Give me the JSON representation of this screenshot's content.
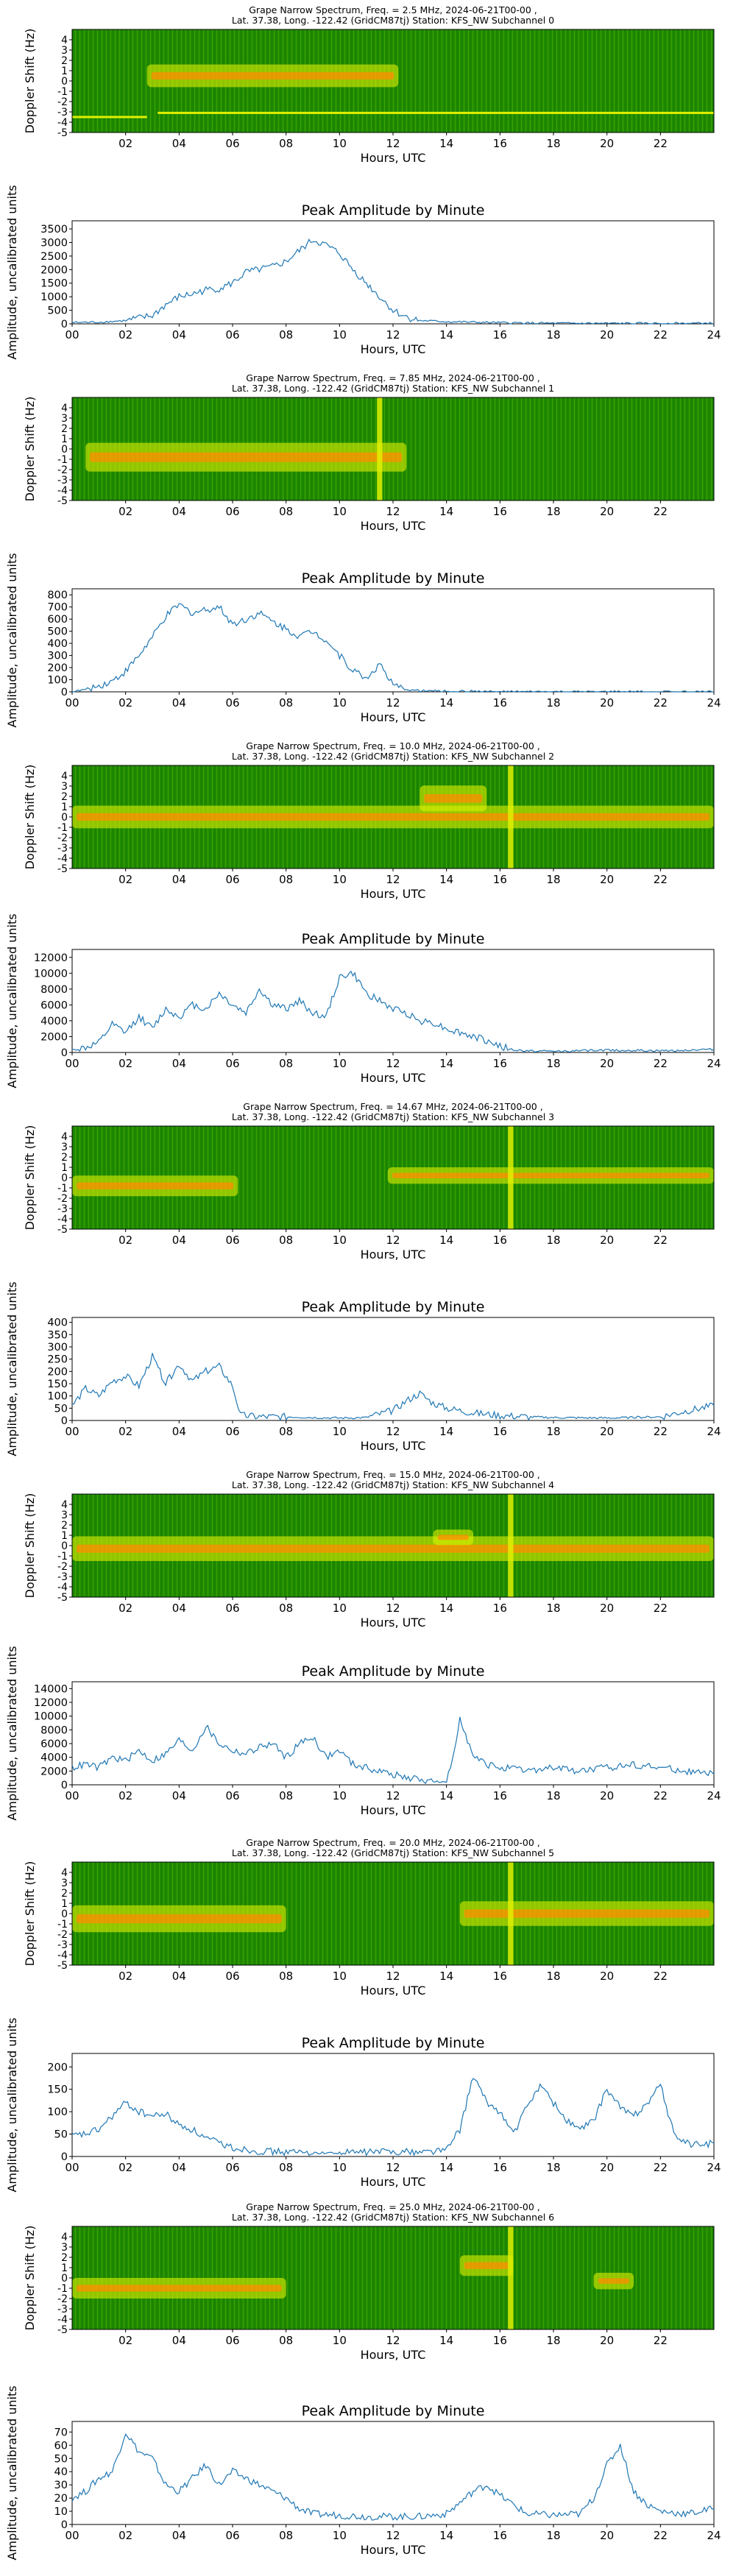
{
  "figure": {
    "x_ticks": [
      "00",
      "02",
      "04",
      "06",
      "08",
      "10",
      "12",
      "14",
      "16",
      "18",
      "20",
      "22",
      "24"
    ],
    "spec_x_ticks": [
      "02",
      "04",
      "06",
      "08",
      "10",
      "12",
      "14",
      "16",
      "18",
      "20",
      "22"
    ]
  },
  "chart_data": [
    {
      "type": "heatmap",
      "channel": 0,
      "title": "Grape Narrow Spectrum, Freq. = 2.5 MHz, 2024-06-21T00-00 ,",
      "subtitle": "Lat.  37.38, Long. -122.42 (GridCM87tj) Station: KFS_NW Subchannel 0",
      "xlabel": "Hours, UTC",
      "ylabel": "Doppler Shift (Hz)",
      "xlim": [
        0,
        24
      ],
      "ylim": [
        -5,
        5
      ],
      "y_ticks": [
        "4",
        "3",
        "2",
        "1",
        "0",
        "-1",
        "-2",
        "-3",
        "-4",
        "-5"
      ],
      "colors": {
        "background": "#1e8a00",
        "signal": "#e0f000",
        "peak": "#ff8c00"
      },
      "features": [
        {
          "kind": "band",
          "start": 2.8,
          "end": 12.2,
          "center": 0.5,
          "width": 2.2
        },
        {
          "kind": "line",
          "start": 0,
          "end": 2.8,
          "center": -3.5
        },
        {
          "kind": "line",
          "start": 3.2,
          "end": 24,
          "center": -3.1
        }
      ]
    },
    {
      "type": "line",
      "channel": 0,
      "title": "Peak Amplitude by Minute",
      "xlabel": "Hours, UTC",
      "ylabel": "Amplitude, uncalibrated units",
      "xlim": [
        0,
        24
      ],
      "ylim": [
        0,
        3800
      ],
      "y_ticks": [
        0,
        500,
        1000,
        1500,
        2000,
        2500,
        3000,
        3500
      ],
      "x": [
        0,
        1,
        2,
        3,
        3.5,
        4,
        4.5,
        5,
        5.5,
        6,
        6.5,
        7,
        7.5,
        8,
        8.5,
        9,
        9.5,
        10,
        10.5,
        11,
        11.5,
        12,
        12.5,
        13,
        14,
        16,
        18,
        20,
        22,
        24
      ],
      "values": [
        50,
        60,
        120,
        300,
        700,
        1000,
        1100,
        1250,
        1300,
        1500,
        1900,
        2000,
        2100,
        2300,
        2700,
        3100,
        2900,
        2600,
        2000,
        1500,
        1000,
        500,
        250,
        120,
        80,
        40,
        20,
        15,
        15,
        20
      ]
    },
    {
      "type": "heatmap",
      "channel": 1,
      "title": "Grape Narrow Spectrum, Freq. = 7.85 MHz, 2024-06-21T00-00 ,",
      "subtitle": "Lat.  37.38, Long. -122.42 (GridCM87tj) Station: KFS_NW Subchannel 1",
      "xlabel": "Hours, UTC",
      "ylabel": "Doppler Shift (Hz)",
      "xlim": [
        0,
        24
      ],
      "ylim": [
        -5,
        5
      ],
      "y_ticks": [
        "4",
        "3",
        "2",
        "1",
        "0",
        "-1",
        "-2",
        "-3",
        "-4",
        "-5"
      ],
      "colors": {
        "background": "#1e8a00",
        "signal": "#e0f000",
        "peak": "#ff8c00"
      },
      "features": [
        {
          "kind": "band",
          "start": 0.5,
          "end": 12.5,
          "center": -0.8,
          "width": 2.8
        },
        {
          "kind": "vline",
          "start": 11.4,
          "end": 11.6,
          "center": 0
        }
      ]
    },
    {
      "type": "line",
      "channel": 1,
      "title": "Peak Amplitude by Minute",
      "xlabel": "Hours, UTC",
      "ylabel": "Amplitude, uncalibrated units",
      "xlim": [
        0,
        24
      ],
      "ylim": [
        0,
        850
      ],
      "y_ticks": [
        0,
        100,
        200,
        300,
        400,
        500,
        600,
        700,
        800
      ],
      "x": [
        0,
        0.5,
        1,
        1.5,
        2,
        2.5,
        3,
        3.5,
        4,
        4.5,
        5,
        5.5,
        6,
        6.5,
        7,
        7.5,
        8,
        8.5,
        9,
        9.5,
        10,
        10.5,
        11,
        11.5,
        12,
        12.5,
        13,
        14,
        15,
        16,
        18,
        20,
        22,
        24
      ],
      "values": [
        0,
        20,
        50,
        90,
        170,
        300,
        450,
        620,
        720,
        650,
        680,
        700,
        560,
        600,
        650,
        580,
        520,
        460,
        500,
        430,
        300,
        180,
        110,
        230,
        50,
        20,
        10,
        5,
        5,
        0,
        0,
        0,
        0,
        0
      ]
    },
    {
      "type": "heatmap",
      "channel": 2,
      "title": "Grape Narrow Spectrum, Freq. = 10.0 MHz, 2024-06-21T00-00 ,",
      "subtitle": "Lat.  37.38, Long. -122.42 (GridCM87tj) Station: KFS_NW Subchannel 2",
      "xlabel": "Hours, UTC",
      "ylabel": "Doppler Shift (Hz)",
      "xlim": [
        0,
        24
      ],
      "ylim": [
        -5,
        5
      ],
      "y_ticks": [
        "4",
        "3",
        "2",
        "1",
        "0",
        "-1",
        "-2",
        "-3",
        "-4",
        "-5"
      ],
      "colors": {
        "background": "#1e8a00",
        "signal": "#e0f000",
        "peak": "#ff8c00"
      },
      "features": [
        {
          "kind": "band",
          "start": 0,
          "end": 24,
          "center": 0,
          "width": 2.2
        },
        {
          "kind": "band",
          "start": 13,
          "end": 15.5,
          "center": 1.8,
          "width": 2.5
        },
        {
          "kind": "vline",
          "start": 16.3,
          "end": 16.5,
          "center": 0
        }
      ]
    },
    {
      "type": "line",
      "channel": 2,
      "title": "Peak Amplitude by Minute",
      "xlabel": "Hours, UTC",
      "ylabel": "Amplitude, uncalibrated units",
      "xlim": [
        0,
        24
      ],
      "ylim": [
        0,
        13000
      ],
      "y_ticks": [
        0,
        2000,
        4000,
        6000,
        8000,
        10000,
        12000
      ],
      "x": [
        0,
        0.5,
        1,
        1.5,
        2,
        2.5,
        3,
        3.5,
        4,
        4.5,
        5,
        5.5,
        6,
        6.5,
        7,
        7.5,
        8,
        8.5,
        9,
        9.5,
        10,
        10.5,
        11,
        11.5,
        12,
        12.5,
        13,
        13.5,
        14,
        14.5,
        15,
        15.5,
        16,
        16.5,
        17,
        18,
        20,
        22,
        24
      ],
      "values": [
        300,
        600,
        1200,
        3500,
        2500,
        4500,
        3000,
        5500,
        4500,
        6000,
        5500,
        7500,
        6000,
        5000,
        8000,
        6000,
        5500,
        6500,
        5000,
        4500,
        9500,
        10000,
        7500,
        6500,
        5500,
        5000,
        4000,
        3800,
        3000,
        2500,
        2000,
        1500,
        800,
        300,
        200,
        150,
        300,
        200,
        400
      ]
    },
    {
      "type": "heatmap",
      "channel": 3,
      "title": "Grape Narrow Spectrum, Freq. = 14.67 MHz, 2024-06-21T00-00 ,",
      "subtitle": "Lat.  37.38, Long. -122.42 (GridCM87tj) Station: KFS_NW Subchannel 3",
      "xlabel": "Hours, UTC",
      "ylabel": "Doppler Shift (Hz)",
      "xlim": [
        0,
        24
      ],
      "ylim": [
        -5,
        5
      ],
      "y_ticks": [
        "4",
        "3",
        "2",
        "1",
        "0",
        "-1",
        "-2",
        "-3",
        "-4",
        "-5"
      ],
      "colors": {
        "background": "#1e8a00",
        "signal": "#e0f000",
        "peak": "#ff8c00"
      },
      "features": [
        {
          "kind": "band",
          "start": 0,
          "end": 6.2,
          "center": -0.8,
          "width": 2.0
        },
        {
          "kind": "band",
          "start": 11.8,
          "end": 24,
          "center": 0.2,
          "width": 1.6
        },
        {
          "kind": "vline",
          "start": 16.3,
          "end": 16.5,
          "center": 0
        }
      ]
    },
    {
      "type": "line",
      "channel": 3,
      "title": "Peak Amplitude by Minute",
      "xlabel": "Hours, UTC",
      "ylabel": "Amplitude, uncalibrated units",
      "xlim": [
        0,
        24
      ],
      "ylim": [
        0,
        420
      ],
      "y_ticks": [
        0,
        50,
        100,
        150,
        200,
        250,
        300,
        350,
        400
      ],
      "x": [
        0,
        0.5,
        1,
        1.5,
        2,
        2.5,
        3,
        3.5,
        4,
        4.5,
        5,
        5.5,
        6,
        6.3,
        7,
        8,
        9,
        10,
        11,
        12,
        12.5,
        13,
        13.5,
        14,
        15,
        16,
        17,
        18,
        20,
        22,
        23,
        24
      ],
      "values": [
        60,
        130,
        100,
        160,
        180,
        140,
        260,
        150,
        230,
        160,
        200,
        220,
        140,
        20,
        15,
        15,
        12,
        10,
        12,
        40,
        80,
        110,
        70,
        50,
        30,
        20,
        15,
        12,
        10,
        15,
        40,
        60
      ]
    },
    {
      "type": "heatmap",
      "channel": 4,
      "title": "Grape Narrow Spectrum, Freq. = 15.0 MHz, 2024-06-21T00-00 ,",
      "subtitle": "Lat.  37.38, Long. -122.42 (GridCM87tj) Station: KFS_NW Subchannel 4",
      "xlabel": "Hours, UTC",
      "ylabel": "Doppler Shift (Hz)",
      "xlim": [
        0,
        24
      ],
      "ylim": [
        -5,
        5
      ],
      "y_ticks": [
        "4",
        "3",
        "2",
        "1",
        "0",
        "-1",
        "-2",
        "-3",
        "-4",
        "-5"
      ],
      "colors": {
        "background": "#1e8a00",
        "signal": "#e0f000",
        "peak": "#ff8c00"
      },
      "features": [
        {
          "kind": "band",
          "start": 0,
          "end": 24,
          "center": -0.3,
          "width": 2.4
        },
        {
          "kind": "band",
          "start": 13.5,
          "end": 15,
          "center": 0.8,
          "width": 1.5
        },
        {
          "kind": "vline",
          "start": 16.3,
          "end": 16.5,
          "center": 0
        }
      ]
    },
    {
      "type": "line",
      "channel": 4,
      "title": "Peak Amplitude by Minute",
      "xlabel": "Hours, UTC",
      "ylabel": "Amplitude, uncalibrated units",
      "xlim": [
        0,
        24
      ],
      "ylim": [
        0,
        15000
      ],
      "y_ticks": [
        0,
        2000,
        4000,
        6000,
        8000,
        10000,
        12000,
        14000
      ],
      "x": [
        0,
        0.5,
        1,
        1.5,
        2,
        2.5,
        3,
        3.5,
        4,
        4.5,
        5,
        5.5,
        6,
        6.5,
        7,
        7.5,
        8,
        8.5,
        9,
        9.5,
        10,
        10.5,
        11,
        11.5,
        12,
        12.5,
        13,
        13.5,
        14,
        14.3,
        14.5,
        15,
        15.5,
        16,
        17,
        18,
        19,
        20,
        21,
        22,
        23,
        24
      ],
      "values": [
        2500,
        3000,
        2500,
        4000,
        3500,
        5000,
        3500,
        4500,
        6500,
        5000,
        8500,
        6000,
        5000,
        4500,
        5500,
        6000,
        4000,
        6000,
        7000,
        4000,
        5000,
        3000,
        2500,
        2000,
        1500,
        1000,
        800,
        500,
        300,
        5000,
        10000,
        4000,
        3000,
        2500,
        2000,
        2500,
        2000,
        2500,
        3000,
        2500,
        2000,
        1500
      ]
    },
    {
      "type": "heatmap",
      "channel": 5,
      "title": "Grape Narrow Spectrum, Freq. = 20.0 MHz, 2024-06-21T00-00 ,",
      "subtitle": "Lat.  37.38, Long. -122.42 (GridCM87tj) Station: KFS_NW Subchannel 5",
      "xlabel": "Hours, UTC",
      "ylabel": "Doppler Shift (Hz)",
      "xlim": [
        0,
        24
      ],
      "ylim": [
        -5,
        5
      ],
      "y_ticks": [
        "4",
        "3",
        "2",
        "1",
        "0",
        "-1",
        "-2",
        "-3",
        "-4",
        "-5"
      ],
      "colors": {
        "background": "#1e8a00",
        "signal": "#e0f000",
        "peak": "#ff8c00"
      },
      "features": [
        {
          "kind": "band",
          "start": 0,
          "end": 8,
          "center": -0.5,
          "width": 2.6
        },
        {
          "kind": "band",
          "start": 14.5,
          "end": 24,
          "center": 0,
          "width": 2.4
        },
        {
          "kind": "vline",
          "start": 16.3,
          "end": 16.5,
          "center": 0
        }
      ]
    },
    {
      "type": "line",
      "channel": 5,
      "title": "Peak Amplitude by Minute",
      "xlabel": "Hours, UTC",
      "ylabel": "Amplitude, uncalibrated units",
      "xlim": [
        0,
        24
      ],
      "ylim": [
        0,
        230
      ],
      "y_ticks": [
        0,
        50,
        100,
        150,
        200
      ],
      "x": [
        0,
        0.5,
        1,
        1.5,
        2,
        2.5,
        3,
        3.5,
        4,
        4.5,
        5,
        5.5,
        6,
        7,
        8,
        9,
        10,
        11,
        12,
        13,
        14,
        14.5,
        15,
        15.5,
        16,
        16.5,
        17,
        17.5,
        18,
        18.5,
        19,
        19.5,
        20,
        20.5,
        21,
        21.5,
        22,
        22.5,
        23,
        23.5,
        24
      ],
      "values": [
        45,
        50,
        60,
        90,
        120,
        100,
        90,
        95,
        70,
        60,
        40,
        30,
        20,
        12,
        10,
        8,
        8,
        10,
        12,
        10,
        15,
        60,
        180,
        120,
        100,
        50,
        110,
        160,
        120,
        80,
        60,
        80,
        150,
        110,
        90,
        120,
        160,
        50,
        30,
        25,
        30
      ]
    },
    {
      "type": "heatmap",
      "channel": 6,
      "title": "Grape Narrow Spectrum, Freq. = 25.0 MHz, 2024-06-21T00-00 ,",
      "subtitle": "Lat.  37.38, Long. -122.42 (GridCM87tj) Station: KFS_NW Subchannel 6",
      "xlabel": "Hours, UTC",
      "ylabel": "Doppler Shift (Hz)",
      "xlim": [
        0,
        24
      ],
      "ylim": [
        -5,
        5
      ],
      "y_ticks": [
        "4",
        "3",
        "2",
        "1",
        "0",
        "-1",
        "-2",
        "-3",
        "-4",
        "-5"
      ],
      "colors": {
        "background": "#1e8a00",
        "signal": "#e0f000",
        "peak": "#ff8c00"
      },
      "features": [
        {
          "kind": "band",
          "start": 0,
          "end": 8,
          "center": -1,
          "width": 2.0
        },
        {
          "kind": "band",
          "start": 14.5,
          "end": 16.5,
          "center": 1.2,
          "width": 2.0
        },
        {
          "kind": "band",
          "start": 19.5,
          "end": 21,
          "center": -0.3,
          "width": 1.6
        },
        {
          "kind": "vline",
          "start": 16.3,
          "end": 16.5,
          "center": 0
        }
      ]
    },
    {
      "type": "line",
      "channel": 6,
      "title": "Peak Amplitude by Minute",
      "xlabel": "Hours, UTC",
      "ylabel": "Amplitude, uncalibrated units",
      "xlim": [
        0,
        24
      ],
      "ylim": [
        0,
        78
      ],
      "y_ticks": [
        0,
        10,
        20,
        30,
        40,
        50,
        60,
        70
      ],
      "x": [
        0,
        0.5,
        1,
        1.5,
        2,
        2.5,
        3,
        3.5,
        4,
        4.5,
        5,
        5.5,
        6,
        6.5,
        7,
        7.5,
        8,
        8.5,
        9,
        10,
        11,
        12,
        13,
        14,
        15,
        15.5,
        16,
        16.5,
        17,
        18,
        19,
        19.5,
        20,
        20.5,
        21,
        21.5,
        22,
        23,
        24
      ],
      "values": [
        20,
        25,
        35,
        40,
        70,
        55,
        50,
        30,
        25,
        35,
        45,
        30,
        40,
        35,
        30,
        25,
        20,
        12,
        8,
        7,
        6,
        6,
        6,
        8,
        25,
        30,
        22,
        15,
        8,
        7,
        8,
        20,
        45,
        60,
        25,
        15,
        10,
        8,
        12
      ]
    }
  ]
}
